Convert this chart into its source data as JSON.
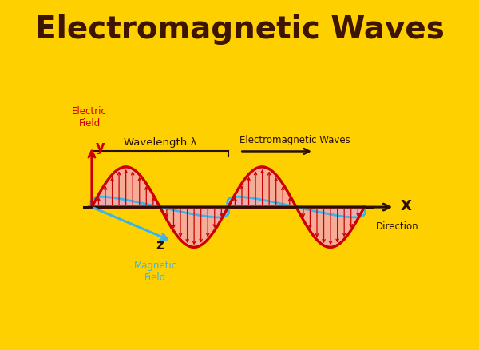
{
  "title": "Electromagnetic Waves",
  "title_color": "#3d1500",
  "title_bg": "#FFD000",
  "title_fontsize": 28,
  "fig_bg": "#FFD000",
  "plot_bg": "#FFFFFF",
  "electric_color": "#CC0000",
  "magnetic_color": "#3BB5E8",
  "axis_color": "#2a1000",
  "label_electric": "Electric\nField",
  "label_magnetic": "Magnetic\nField",
  "label_x": "X",
  "label_y": "y",
  "label_z": "z",
  "label_direction": "Direction",
  "label_wavelength": "Wavelength λ",
  "label_em_waves": "Electromagnetic Waves",
  "electric_fill": "#F5AAAA",
  "magnetic_fill": "#AADDF5",
  "border_color": "#FFD000"
}
